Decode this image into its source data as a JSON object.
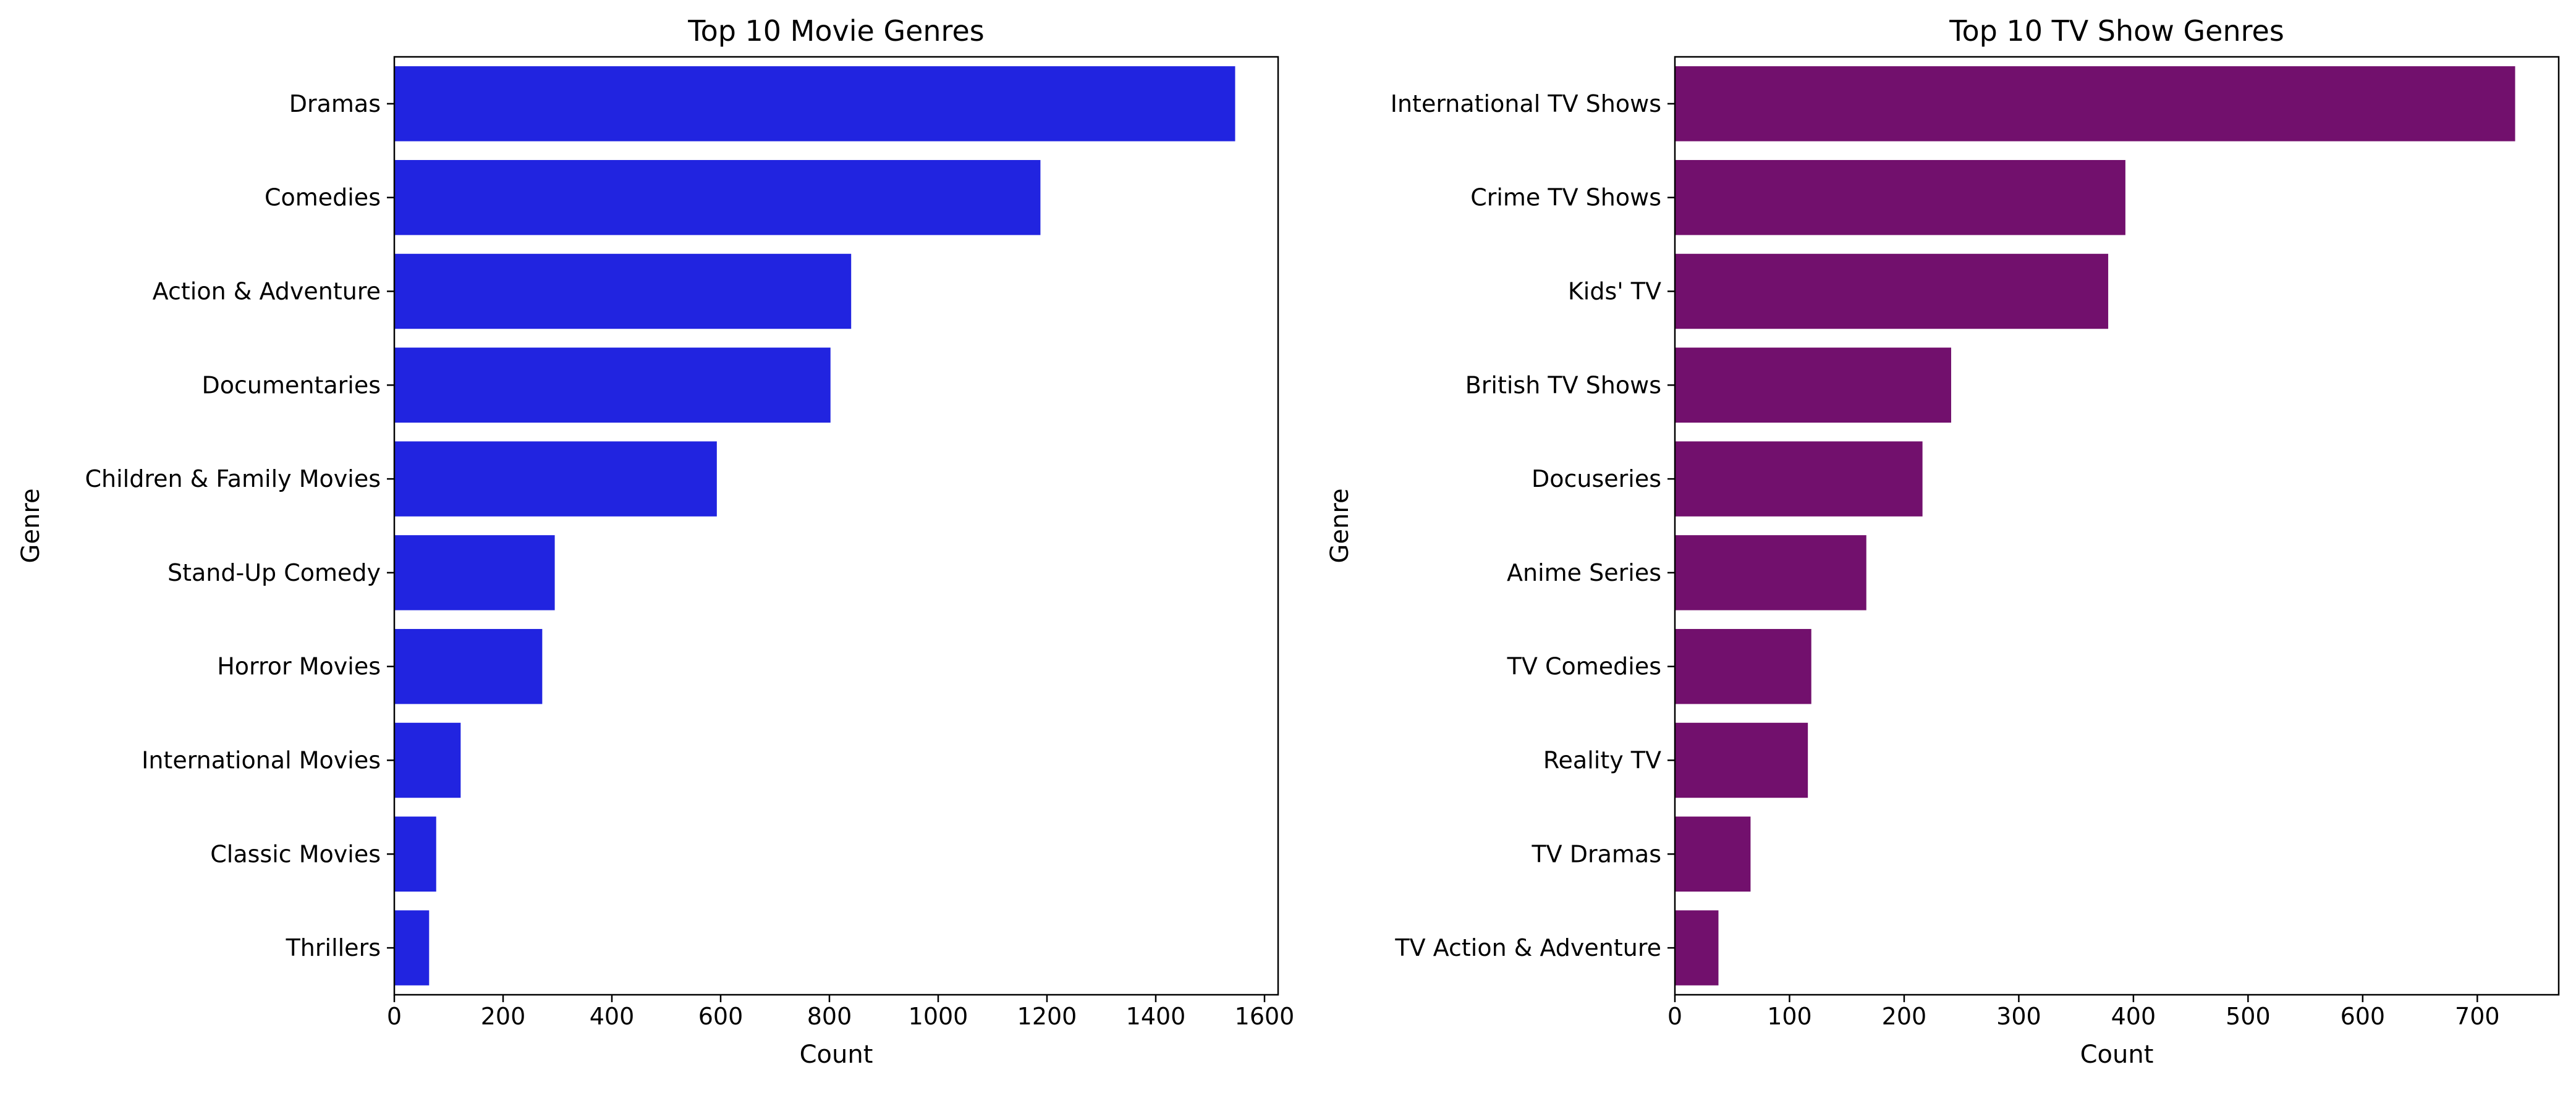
{
  "chart_data": [
    {
      "type": "bar",
      "orientation": "horizontal",
      "title": "Top 10 Movie Genres",
      "xlabel": "Count",
      "ylabel": "Genre",
      "color": "#2124e0",
      "xlim": [
        0,
        1625
      ],
      "xticks": [
        0,
        200,
        400,
        600,
        800,
        1000,
        1200,
        1400,
        1600
      ],
      "grid": false,
      "categories": [
        "Dramas",
        "Comedies",
        "Action & Adventure",
        "Documentaries",
        "Children & Family Movies",
        "Stand-Up Comedy",
        "Horror Movies",
        "International Movies",
        "Classic Movies",
        "Thrillers"
      ],
      "values": [
        1546,
        1188,
        840,
        802,
        593,
        295,
        272,
        122,
        77,
        64
      ]
    },
    {
      "type": "bar",
      "orientation": "horizontal",
      "title": "Top 10 TV Show Genres",
      "xlabel": "Count",
      "ylabel": "Genre",
      "color": "#72106d",
      "xlim": [
        0,
        771
      ],
      "xticks": [
        0,
        100,
        200,
        300,
        400,
        500,
        600,
        700
      ],
      "grid": false,
      "categories": [
        "International TV Shows",
        "Crime TV Shows",
        "Kids' TV",
        "British TV Shows",
        "Docuseries",
        "Anime Series",
        "TV Comedies",
        "Reality TV",
        "TV Dramas",
        "TV Action & Adventure"
      ],
      "values": [
        733,
        393,
        378,
        241,
        216,
        167,
        119,
        116,
        66,
        38
      ]
    }
  ]
}
